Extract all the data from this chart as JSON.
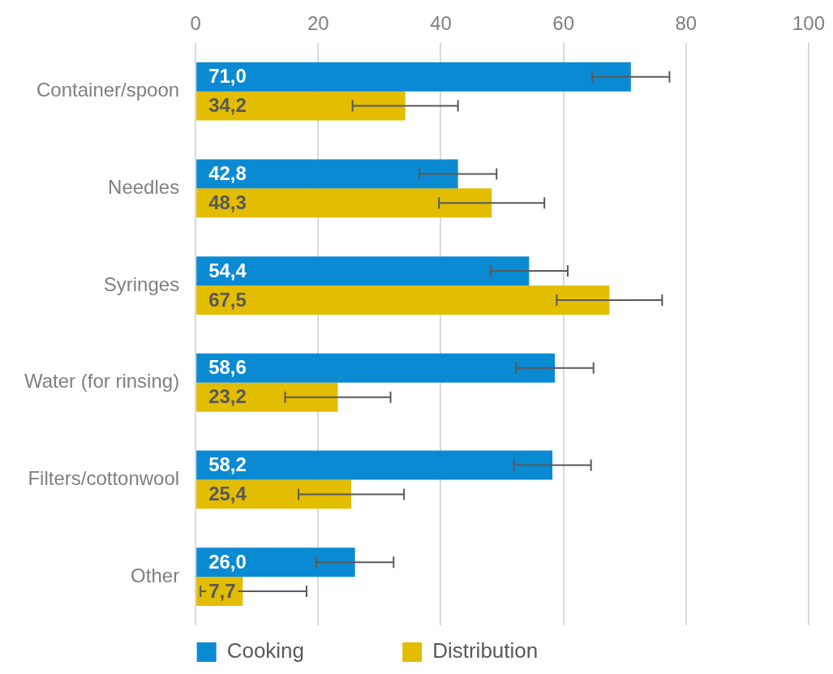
{
  "chart_data": {
    "type": "bar",
    "orientation": "horizontal",
    "categories": [
      "Container/spoon",
      "Needles",
      "Syringes",
      "Water (for rinsing)",
      "Filters/cottonwool",
      "Other"
    ],
    "series": [
      {
        "name": "Cooking",
        "color": "#0a8ad2",
        "values": [
          71.0,
          42.8,
          54.4,
          58.6,
          58.2,
          26.0
        ],
        "errors": [
          6.3,
          6.3,
          6.3,
          6.3,
          6.3,
          6.3
        ],
        "value_labels": [
          "71,0",
          "42,8",
          "54,4",
          "58,6",
          "58,2",
          "26,0"
        ]
      },
      {
        "name": "Distribution",
        "color": "#e2bd00",
        "values": [
          34.2,
          48.3,
          67.5,
          23.2,
          25.4,
          7.7
        ],
        "errors": [
          8.6,
          8.6,
          8.6,
          8.6,
          8.6,
          [
            0.8,
            18.1
          ]
        ],
        "value_labels": [
          "34,2",
          "48,3",
          "67,5",
          "23,2",
          "25,4",
          "7,7"
        ]
      }
    ],
    "xlim": [
      0,
      100
    ],
    "xticks": [
      0,
      20,
      40,
      60,
      80,
      100
    ],
    "grid": "x",
    "legend": "bottom"
  }
}
